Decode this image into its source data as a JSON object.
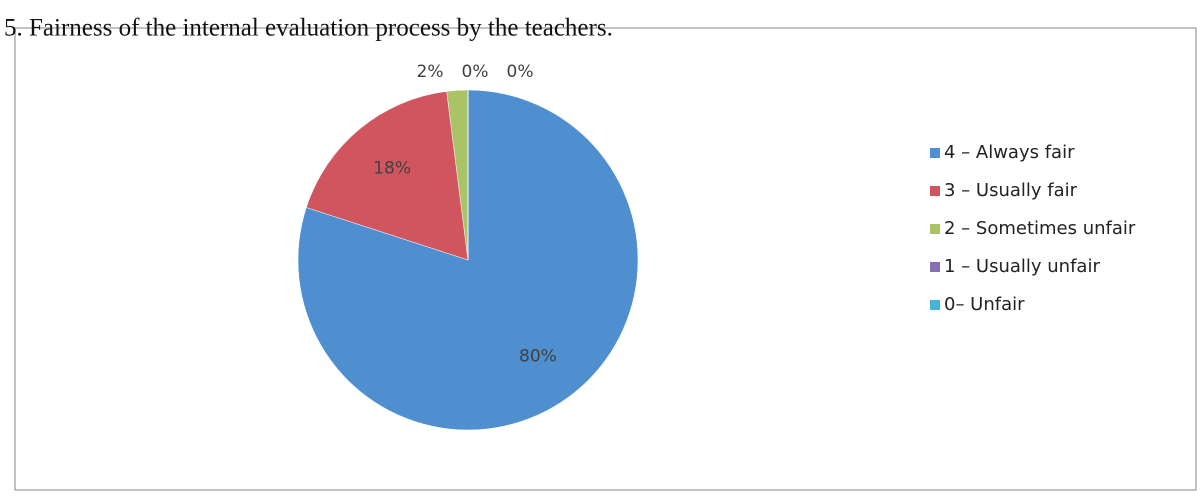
{
  "chart_data": {
    "type": "pie",
    "title": "5. Fairness of the internal evaluation process by the teachers.",
    "categories": [
      "4 – Always fair",
      "3 – Usually fair",
      "2 – Sometimes unfair",
      "1 – Usually unfair",
      "0– Unfair"
    ],
    "values": [
      80,
      18,
      2,
      0,
      0
    ],
    "value_labels": [
      "80%",
      "18%",
      "2%",
      "0%",
      "0%"
    ],
    "colors": [
      "#4f8fd0",
      "#d0555f",
      "#a8c466",
      "#8670b5",
      "#47b5d6"
    ],
    "legend": "right"
  }
}
